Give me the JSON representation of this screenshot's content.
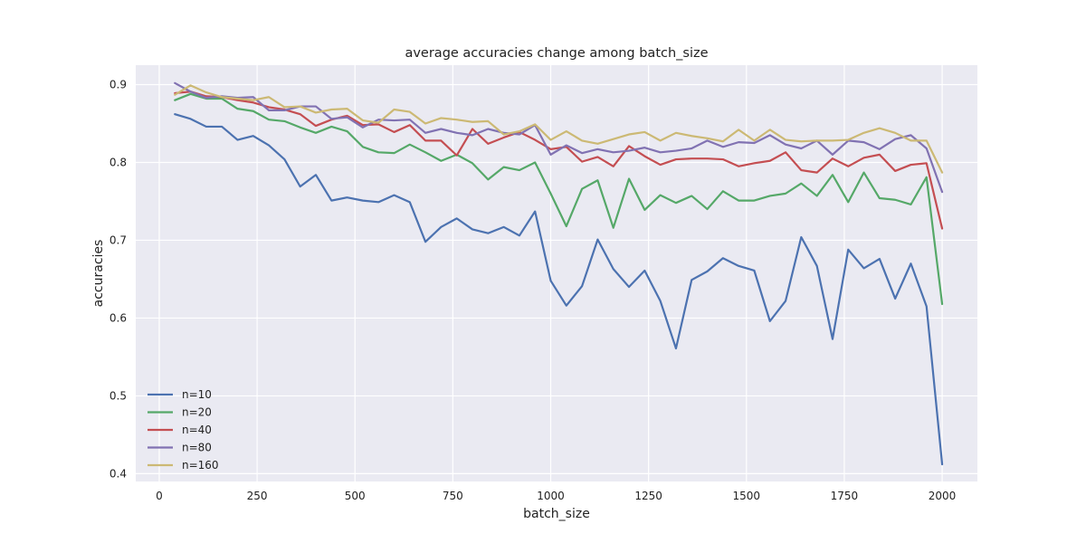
{
  "chart_data": {
    "type": "line",
    "title": "average accuracies change among batch_size",
    "xlabel": "batch_size",
    "ylabel": "accuracies",
    "xlim": [
      -60,
      2090
    ],
    "ylim": [
      0.39,
      0.925
    ],
    "x_ticks": [
      0,
      250,
      500,
      750,
      1000,
      1250,
      1500,
      1750,
      2000
    ],
    "x_tick_labels": [
      "0",
      "250",
      "500",
      "750",
      "1000",
      "1250",
      "1500",
      "1750",
      "2000"
    ],
    "y_ticks": [
      0.4,
      0.5,
      0.6,
      0.7,
      0.8,
      0.9
    ],
    "y_tick_labels": [
      "0.4",
      "0.5",
      "0.6",
      "0.7",
      "0.8",
      "0.9"
    ],
    "grid": true,
    "legend_position": "lower-left",
    "background": "#eaeaf2",
    "x": [
      40,
      80,
      120,
      160,
      200,
      240,
      280,
      320,
      360,
      400,
      440,
      480,
      520,
      560,
      600,
      640,
      680,
      720,
      760,
      800,
      840,
      880,
      920,
      960,
      1000,
      1040,
      1080,
      1120,
      1160,
      1200,
      1240,
      1280,
      1320,
      1360,
      1400,
      1440,
      1480,
      1520,
      1560,
      1600,
      1640,
      1680,
      1720,
      1760,
      1800,
      1840,
      1880,
      1920,
      1960,
      2000
    ],
    "series": [
      {
        "name": "n=10",
        "color": "#4c72b0",
        "values": [
          0.862,
          0.856,
          0.846,
          0.846,
          0.829,
          0.834,
          0.822,
          0.804,
          0.769,
          0.784,
          0.751,
          0.755,
          0.751,
          0.749,
          0.758,
          0.749,
          0.698,
          0.717,
          0.728,
          0.714,
          0.709,
          0.717,
          0.706,
          0.737,
          0.648,
          0.616,
          0.641,
          0.701,
          0.663,
          0.64,
          0.661,
          0.622,
          0.561,
          0.649,
          0.66,
          0.677,
          0.667,
          0.661,
          0.596,
          0.622,
          0.704,
          0.667,
          0.573,
          0.688,
          0.664,
          0.676,
          0.625,
          0.67,
          0.615,
          0.412
        ]
      },
      {
        "name": "n=20",
        "color": "#55a868",
        "values": [
          0.88,
          0.888,
          0.882,
          0.882,
          0.869,
          0.866,
          0.855,
          0.853,
          0.845,
          0.838,
          0.846,
          0.84,
          0.82,
          0.813,
          0.812,
          0.823,
          0.813,
          0.802,
          0.81,
          0.799,
          0.778,
          0.794,
          0.79,
          0.8,
          0.76,
          0.718,
          0.766,
          0.777,
          0.716,
          0.779,
          0.739,
          0.758,
          0.748,
          0.757,
          0.74,
          0.763,
          0.751,
          0.751,
          0.757,
          0.76,
          0.773,
          0.757,
          0.784,
          0.749,
          0.787,
          0.754,
          0.752,
          0.746,
          0.781,
          0.618
        ]
      },
      {
        "name": "n=40",
        "color": "#c44e52",
        "values": [
          0.889,
          0.891,
          0.885,
          0.884,
          0.88,
          0.877,
          0.871,
          0.868,
          0.862,
          0.847,
          0.855,
          0.86,
          0.848,
          0.849,
          0.839,
          0.848,
          0.828,
          0.828,
          0.809,
          0.843,
          0.824,
          0.832,
          0.839,
          0.829,
          0.817,
          0.82,
          0.801,
          0.807,
          0.795,
          0.821,
          0.808,
          0.797,
          0.804,
          0.805,
          0.805,
          0.804,
          0.795,
          0.799,
          0.802,
          0.813,
          0.79,
          0.787,
          0.805,
          0.795,
          0.806,
          0.81,
          0.789,
          0.797,
          0.799,
          0.715
        ]
      },
      {
        "name": "n=80",
        "color": "#8172b2",
        "values": [
          0.902,
          0.891,
          0.883,
          0.885,
          0.883,
          0.884,
          0.867,
          0.867,
          0.872,
          0.872,
          0.856,
          0.858,
          0.845,
          0.855,
          0.854,
          0.855,
          0.838,
          0.843,
          0.838,
          0.835,
          0.843,
          0.838,
          0.836,
          0.848,
          0.81,
          0.822,
          0.812,
          0.817,
          0.813,
          0.815,
          0.819,
          0.813,
          0.815,
          0.818,
          0.828,
          0.82,
          0.826,
          0.825,
          0.835,
          0.823,
          0.818,
          0.828,
          0.81,
          0.828,
          0.826,
          0.817,
          0.83,
          0.835,
          0.818,
          0.762
        ]
      },
      {
        "name": "n=160",
        "color": "#ccb974",
        "values": [
          0.887,
          0.899,
          0.89,
          0.884,
          0.882,
          0.88,
          0.884,
          0.871,
          0.872,
          0.864,
          0.868,
          0.869,
          0.854,
          0.851,
          0.868,
          0.865,
          0.85,
          0.857,
          0.855,
          0.852,
          0.853,
          0.836,
          0.84,
          0.849,
          0.829,
          0.84,
          0.828,
          0.824,
          0.83,
          0.836,
          0.839,
          0.828,
          0.838,
          0.834,
          0.831,
          0.827,
          0.842,
          0.828,
          0.842,
          0.829,
          0.827,
          0.828,
          0.828,
          0.829,
          0.838,
          0.844,
          0.838,
          0.828,
          0.828,
          0.787
        ]
      }
    ]
  }
}
